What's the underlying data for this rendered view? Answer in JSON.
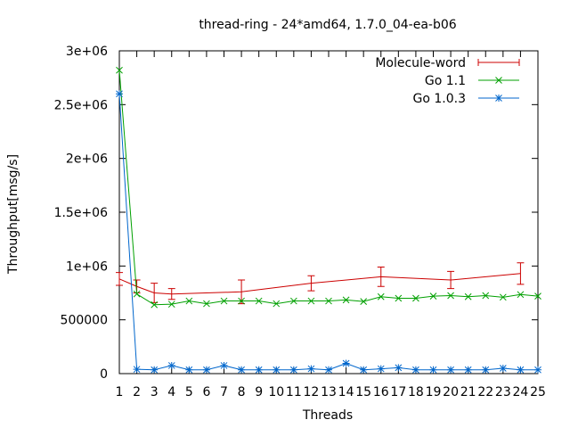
{
  "chart_data": {
    "type": "line",
    "title": "thread-ring - 24*amd64, 1.7.0_04-ea-b06",
    "xlabel": "Threads",
    "ylabel": "Throughput[msg/s]",
    "xlim": [
      1,
      25
    ],
    "ylim": [
      0,
      3000000
    ],
    "x_ticks": [
      1,
      2,
      3,
      4,
      5,
      6,
      7,
      8,
      9,
      10,
      11,
      12,
      13,
      14,
      15,
      16,
      17,
      18,
      19,
      20,
      21,
      22,
      23,
      24,
      25
    ],
    "y_ticks": [
      {
        "value": 0,
        "label": "0"
      },
      {
        "value": 500000,
        "label": "500000"
      },
      {
        "value": 1000000,
        "label": "1e+06"
      },
      {
        "value": 1500000,
        "label": "1.5e+06"
      },
      {
        "value": 2000000,
        "label": "2e+06"
      },
      {
        "value": 2500000,
        "label": "2.5e+06"
      },
      {
        "value": 3000000,
        "label": "3e+06"
      }
    ],
    "grid": false,
    "legend_position": "top-right",
    "series": [
      {
        "name": "Molecule-word",
        "color": "#cc0000",
        "marker": "errorbar",
        "x": [
          1,
          2,
          3,
          4,
          8,
          12,
          16,
          20,
          24
        ],
        "y": [
          880000,
          810000,
          750000,
          740000,
          760000,
          840000,
          900000,
          870000,
          930000
        ],
        "err": [
          60000,
          60000,
          90000,
          50000,
          110000,
          70000,
          90000,
          80000,
          100000
        ]
      },
      {
        "name": "Go 1.1",
        "color": "#00a000",
        "marker": "x",
        "x": [
          1,
          2,
          3,
          4,
          5,
          6,
          7,
          8,
          9,
          10,
          11,
          12,
          13,
          14,
          15,
          16,
          17,
          18,
          19,
          20,
          21,
          22,
          23,
          24,
          25
        ],
        "y": [
          2820000,
          740000,
          640000,
          645000,
          675000,
          650000,
          675000,
          675000,
          675000,
          650000,
          675000,
          675000,
          675000,
          685000,
          670000,
          715000,
          700000,
          700000,
          720000,
          725000,
          715000,
          725000,
          710000,
          735000,
          720000
        ]
      },
      {
        "name": "Go 1.0.3",
        "color": "#0066cc",
        "marker": "asterisk",
        "x": [
          1,
          2,
          3,
          4,
          5,
          6,
          7,
          8,
          9,
          10,
          11,
          12,
          13,
          14,
          15,
          16,
          17,
          18,
          19,
          20,
          21,
          22,
          23,
          24,
          25
        ],
        "y": [
          2600000,
          40000,
          35000,
          75000,
          35000,
          35000,
          75000,
          35000,
          35000,
          35000,
          35000,
          45000,
          35000,
          95000,
          35000,
          45000,
          55000,
          35000,
          35000,
          35000,
          35000,
          35000,
          50000,
          35000,
          35000
        ]
      }
    ]
  }
}
